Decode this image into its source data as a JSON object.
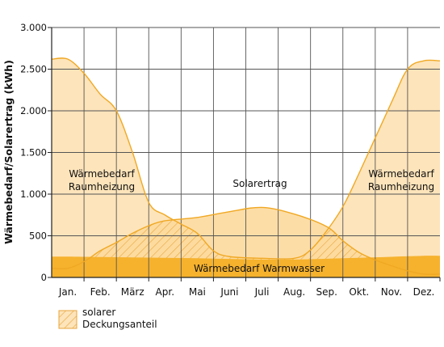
{
  "chart_data": {
    "type": "area",
    "ylabel": "Wärmebedarf/Solarertrag (kWh)",
    "xlabel": "",
    "ylim": [
      0,
      3000
    ],
    "yticks": [
      0,
      500,
      1000,
      1500,
      2000,
      2500,
      3000
    ],
    "ytick_labels": [
      "0",
      "500",
      "1.000",
      "1.500",
      "2.000",
      "2.500",
      "3.000"
    ],
    "grid": true,
    "categories": [
      "Jan.",
      "Feb.",
      "März",
      "Apr.",
      "Mai",
      "Juni",
      "Juli",
      "Aug.",
      "Sep.",
      "Okt.",
      "Nov.",
      "Dez."
    ],
    "series": [
      {
        "name": "Wärmebedarf Raumheizung",
        "color": "#fde4ba",
        "stroke": "#f0a823",
        "points": [
          {
            "x": 0,
            "y": 2620
          },
          {
            "x": 0.5,
            "y": 2450
          },
          {
            "x": 1,
            "y": 2200
          },
          {
            "x": 1.5,
            "y": 2000
          },
          {
            "x": 2,
            "y": 1500
          },
          {
            "x": 2.5,
            "y": 900
          },
          {
            "x": 3,
            "y": 750
          },
          {
            "x": 3.5,
            "y": 640
          },
          {
            "x": 4,
            "y": 530
          },
          {
            "x": 4.5,
            "y": 320
          },
          {
            "x": 5,
            "y": 250
          },
          {
            "x": 6,
            "y": 230
          },
          {
            "x": 7,
            "y": 230
          },
          {
            "x": 7.5,
            "y": 330
          },
          {
            "x": 8,
            "y": 560
          },
          {
            "x": 8.5,
            "y": 850
          },
          {
            "x": 9,
            "y": 1250
          },
          {
            "x": 10,
            "y": 2100
          },
          {
            "x": 10.5,
            "y": 2500
          },
          {
            "x": 11,
            "y": 2600
          }
        ]
      },
      {
        "name": "Solarertrag",
        "color": "#fde4ba",
        "stroke": "#f0a823",
        "points": [
          {
            "x": 0,
            "y": 110
          },
          {
            "x": 0.5,
            "y": 190
          },
          {
            "x": 1,
            "y": 320
          },
          {
            "x": 1.5,
            "y": 420
          },
          {
            "x": 2,
            "y": 530
          },
          {
            "x": 2.5,
            "y": 620
          },
          {
            "x": 3,
            "y": 680
          },
          {
            "x": 4,
            "y": 720
          },
          {
            "x": 5,
            "y": 790
          },
          {
            "x": 6,
            "y": 840
          },
          {
            "x": 7,
            "y": 760
          },
          {
            "x": 8,
            "y": 610
          },
          {
            "x": 8.5,
            "y": 440
          },
          {
            "x": 9,
            "y": 300
          },
          {
            "x": 9.5,
            "y": 210
          },
          {
            "x": 10,
            "y": 140
          },
          {
            "x": 10.5,
            "y": 80
          },
          {
            "x": 11,
            "y": 40
          }
        ]
      },
      {
        "name": "Wärmebedarf Warmwasser",
        "color": "#f6b22d",
        "points": [
          {
            "x": 0,
            "y": 250
          },
          {
            "x": 1,
            "y": 245
          },
          {
            "x": 2,
            "y": 240
          },
          {
            "x": 3,
            "y": 235
          },
          {
            "x": 4,
            "y": 230
          },
          {
            "x": 5,
            "y": 222
          },
          {
            "x": 6,
            "y": 215
          },
          {
            "x": 7,
            "y": 215
          },
          {
            "x": 8,
            "y": 225
          },
          {
            "x": 9,
            "y": 235
          },
          {
            "x": 10,
            "y": 248
          },
          {
            "x": 11,
            "y": 260
          }
        ]
      }
    ],
    "annotations": [
      {
        "name": "raumheizung-left",
        "lines": [
          "Wärmebedarf",
          "Raumheizung"
        ]
      },
      {
        "name": "raumheizung-right",
        "lines": [
          "Wärmebedarf",
          "Raumheizung"
        ]
      },
      {
        "name": "solarertrag",
        "lines": [
          "Solarertrag"
        ]
      },
      {
        "name": "warmwasser",
        "lines": [
          "Wärmebedarf Warmwasser"
        ]
      }
    ],
    "legend": {
      "placement": "bottom-left",
      "label_lines": [
        "solarer",
        "Deckungsanteil"
      ],
      "pattern": "hatched"
    },
    "colors": {
      "area_light": "#fde4ba",
      "area_solar": "#fdd99c",
      "area_dark": "#f6b22d",
      "line": "#f0a823",
      "hatch": "#e8a53c",
      "grid": "#555555"
    }
  }
}
